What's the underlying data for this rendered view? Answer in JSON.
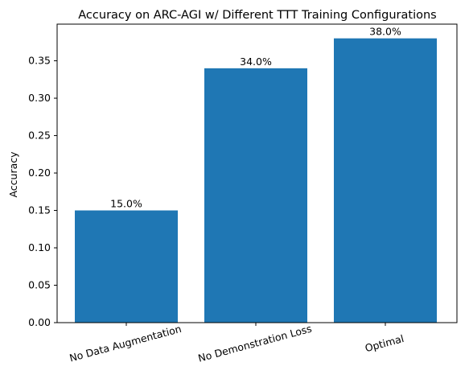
{
  "chart_data": {
    "type": "bar",
    "title": "Accuracy on ARC-AGI w/ Different TTT Training Configurations",
    "xlabel": "",
    "ylabel": "Accuracy",
    "categories": [
      "No Data Augmentation",
      "No Demonstration Loss",
      "Optimal"
    ],
    "values": [
      0.15,
      0.34,
      0.38
    ],
    "value_labels": [
      "15.0%",
      "34.0%",
      "38.0%"
    ],
    "ylim": [
      0,
      0.399
    ],
    "yticks": [
      0.0,
      0.05,
      0.1,
      0.15,
      0.2,
      0.25,
      0.3,
      0.35
    ],
    "ytick_labels": [
      "0.00",
      "0.05",
      "0.10",
      "0.15",
      "0.20",
      "0.25",
      "0.30",
      "0.35"
    ],
    "xtick_rotation_deg": 15,
    "grid": false,
    "legend": "none",
    "bar_color": "#1f77b4"
  }
}
